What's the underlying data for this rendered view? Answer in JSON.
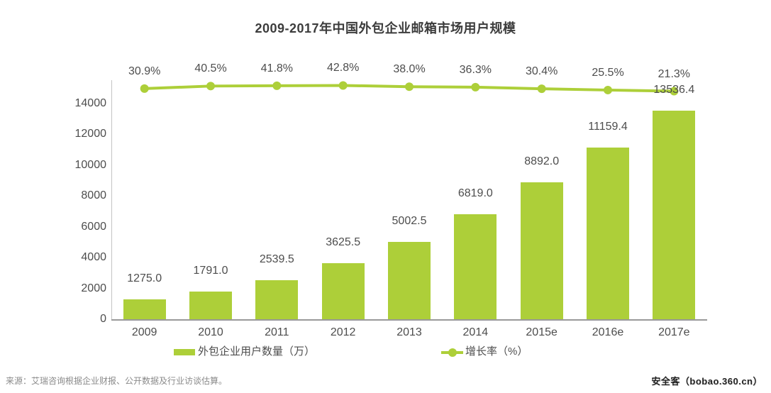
{
  "title": "2009-2017年中国外包企业邮箱市场用户规模",
  "source_note": "来源：艾瑞咨询根据企业财报、公开数据及行业访谈估算。",
  "watermark": "安全客（bobao.360.cn）",
  "colors": {
    "accent_green": "#adcf39",
    "text_dark": "#4d4d4d",
    "title_color": "#3c3c3c",
    "axis_gray": "#999999",
    "source_gray": "#8a8a8a"
  },
  "chart_data": {
    "type": "bar+line",
    "title": "2009-2017年中国外包企业邮箱市场用户规模",
    "categories": [
      "2009",
      "2010",
      "2011",
      "2012",
      "2013",
      "2014",
      "2015e",
      "2016e",
      "2017e"
    ],
    "series": [
      {
        "name": "外包企业用户数量（万）",
        "type": "bar",
        "color": "#adcf39",
        "values": [
          1275.0,
          1791.0,
          2539.5,
          3625.5,
          5002.5,
          6819.0,
          8892.0,
          11159.4,
          13536.4
        ]
      },
      {
        "name": "增长率（%）",
        "type": "line",
        "color": "#adcf39",
        "unit": "%",
        "values": [
          30.9,
          40.5,
          41.8,
          42.8,
          38.0,
          36.3,
          30.4,
          25.5,
          21.3
        ]
      }
    ],
    "y_axis": {
      "min": 0,
      "max": 14000,
      "step": 2000,
      "ticks": [
        0,
        2000,
        4000,
        6000,
        8000,
        10000,
        12000,
        14000
      ]
    },
    "legend_position": "bottom",
    "grid": false
  }
}
